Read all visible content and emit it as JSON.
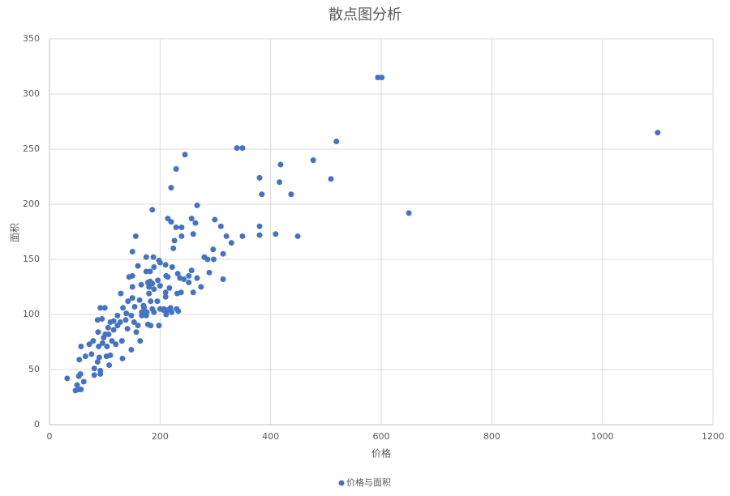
{
  "chart_data": {
    "type": "scatter",
    "title": "散点图分析",
    "x_label": "价格",
    "y_label": "面积",
    "series": [
      {
        "name": "价格与面积",
        "color": "#4472c4",
        "x": [
          1100,
          594,
          601,
          650,
          519,
          477,
          509,
          449,
          409,
          437,
          418,
          416,
          384,
          380,
          380,
          380,
          339,
          349,
          349,
          329,
          314,
          320,
          314,
          310,
          299,
          296,
          297,
          286,
          280,
          289,
          274,
          267,
          264,
          260,
          257,
          257,
          252,
          267,
          260,
          245,
          229,
          220,
          214,
          220,
          224,
          229,
          239,
          239,
          226,
          210,
          198,
          200,
          188,
          175,
          186,
          156,
          150,
          160,
          150,
          144,
          150,
          166,
          175,
          182,
          189,
          182,
          186,
          180,
          189,
          178,
          196,
          200,
          211,
          214,
          222,
          232,
          236,
          243,
          238,
          252,
          231,
          217,
          210,
          200,
          206,
          214,
          219,
          221,
          230,
          233,
          32,
          47,
          53,
          57,
          53,
          50,
          62,
          56,
          54,
          57,
          65,
          76,
          81,
          81,
          92,
          92,
          87,
          90,
          103,
          110,
          108,
          89,
          79,
          88,
          101,
          92,
          100,
          95,
          106,
          110,
          116,
          113,
          120,
          131,
          132,
          129,
          133,
          142,
          148,
          148,
          141,
          128,
          123,
          153,
          157,
          164,
          160,
          167,
          171,
          178,
          183,
          189,
          186,
          176,
          183,
          195,
          198,
          207,
          211,
          210,
          154,
          150,
          163,
          170,
          175,
          180,
          167,
          139,
          138,
          123,
          116,
          87,
          96,
          104,
          72,
          98,
          107
        ],
        "values": [
          265,
          315,
          315,
          192,
          257,
          240,
          223,
          171,
          173,
          209,
          236,
          220,
          209,
          224,
          180,
          172,
          251,
          251,
          171,
          165,
          155,
          171,
          132,
          180,
          186,
          159,
          150,
          150,
          152,
          138,
          125,
          199,
          183,
          173,
          187,
          140,
          135,
          133,
          120,
          245,
          232,
          215,
          187,
          184,
          160,
          179,
          179,
          171,
          167,
          145,
          149,
          147,
          152,
          152,
          195,
          171,
          157,
          144,
          135,
          134,
          125,
          127,
          139,
          139,
          143,
          130,
          128,
          125,
          123,
          129,
          131,
          126,
          135,
          134,
          143,
          137,
          133,
          132,
          120,
          129,
          119,
          124,
          120,
          105,
          104,
          104,
          106,
          102,
          105,
          103,
          42,
          31,
          32,
          32,
          44,
          36,
          39,
          46,
          59,
          71,
          62,
          64,
          51,
          45,
          46,
          49,
          57,
          61,
          62,
          63,
          54,
          71,
          76,
          84,
          82,
          106,
          106,
          96,
          88,
          93,
          86,
          76,
          73,
          76,
          60,
          119,
          106,
          112,
          99,
          68,
          87,
          93,
          90,
          93,
          84,
          76,
          90,
          99,
          106,
          91,
          90,
          102,
          105,
          102,
          112,
          112,
          90,
          105,
          100,
          116,
          107,
          115,
          113,
          108,
          99,
          119,
          102,
          101,
          95,
          99,
          94,
          95,
          74,
          71,
          73,
          79,
          82
        ]
      }
    ],
    "xlim": [
      0,
      1200
    ],
    "xticks": [
      0,
      200,
      400,
      600,
      800,
      1000,
      1200
    ],
    "ylim": [
      0,
      350
    ],
    "yticks": [
      0,
      50,
      100,
      150,
      200,
      250,
      300,
      350
    ],
    "grid": true,
    "legend": "bottom"
  }
}
